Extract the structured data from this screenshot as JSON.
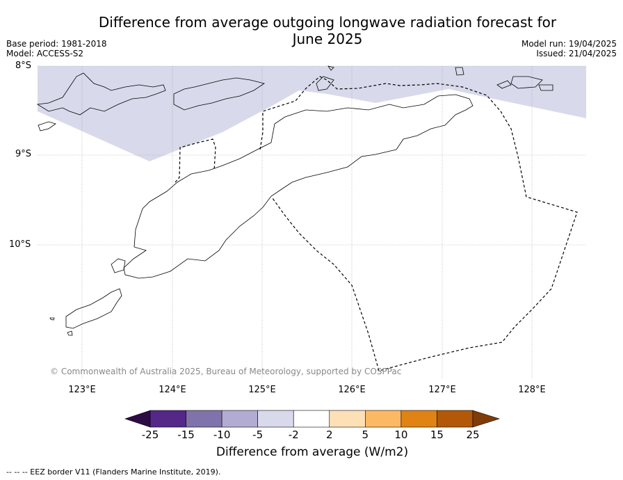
{
  "title_line1": "Difference from average outgoing longwave radiation forecast for",
  "title_line2": "June 2025",
  "meta_left": [
    "Base period: 1981-2018",
    "Model: ACCESS-S2"
  ],
  "meta_right": [
    "Model run: 19/04/2025",
    "Issued: 21/04/2025"
  ],
  "lat_labels": [
    "8°S",
    "9°S",
    "10°S"
  ],
  "lon_labels": [
    "123°E",
    "124°E",
    "125°E",
    "126°E",
    "127°E",
    "128°E"
  ],
  "copyright": "© Commonwealth of Australia 2025, Bureau of Meteorology, supported by COSPPac",
  "colorbar": {
    "title": "Difference from average (W/m2)",
    "ticks": [
      "-25",
      "-15",
      "-10",
      "-5",
      "-2",
      "2",
      "5",
      "10",
      "15",
      "25"
    ],
    "colors": [
      "#2d0b44",
      "#542788",
      "#8073ac",
      "#b2abd2",
      "#d8daeb",
      "#ffffff",
      "#fee0b6",
      "#fdb863",
      "#e08214",
      "#b35806",
      "#7f3b08"
    ]
  },
  "footnote": "--  --  -- EEZ border V11 (Flanders Marine Institute, 2019)."
}
